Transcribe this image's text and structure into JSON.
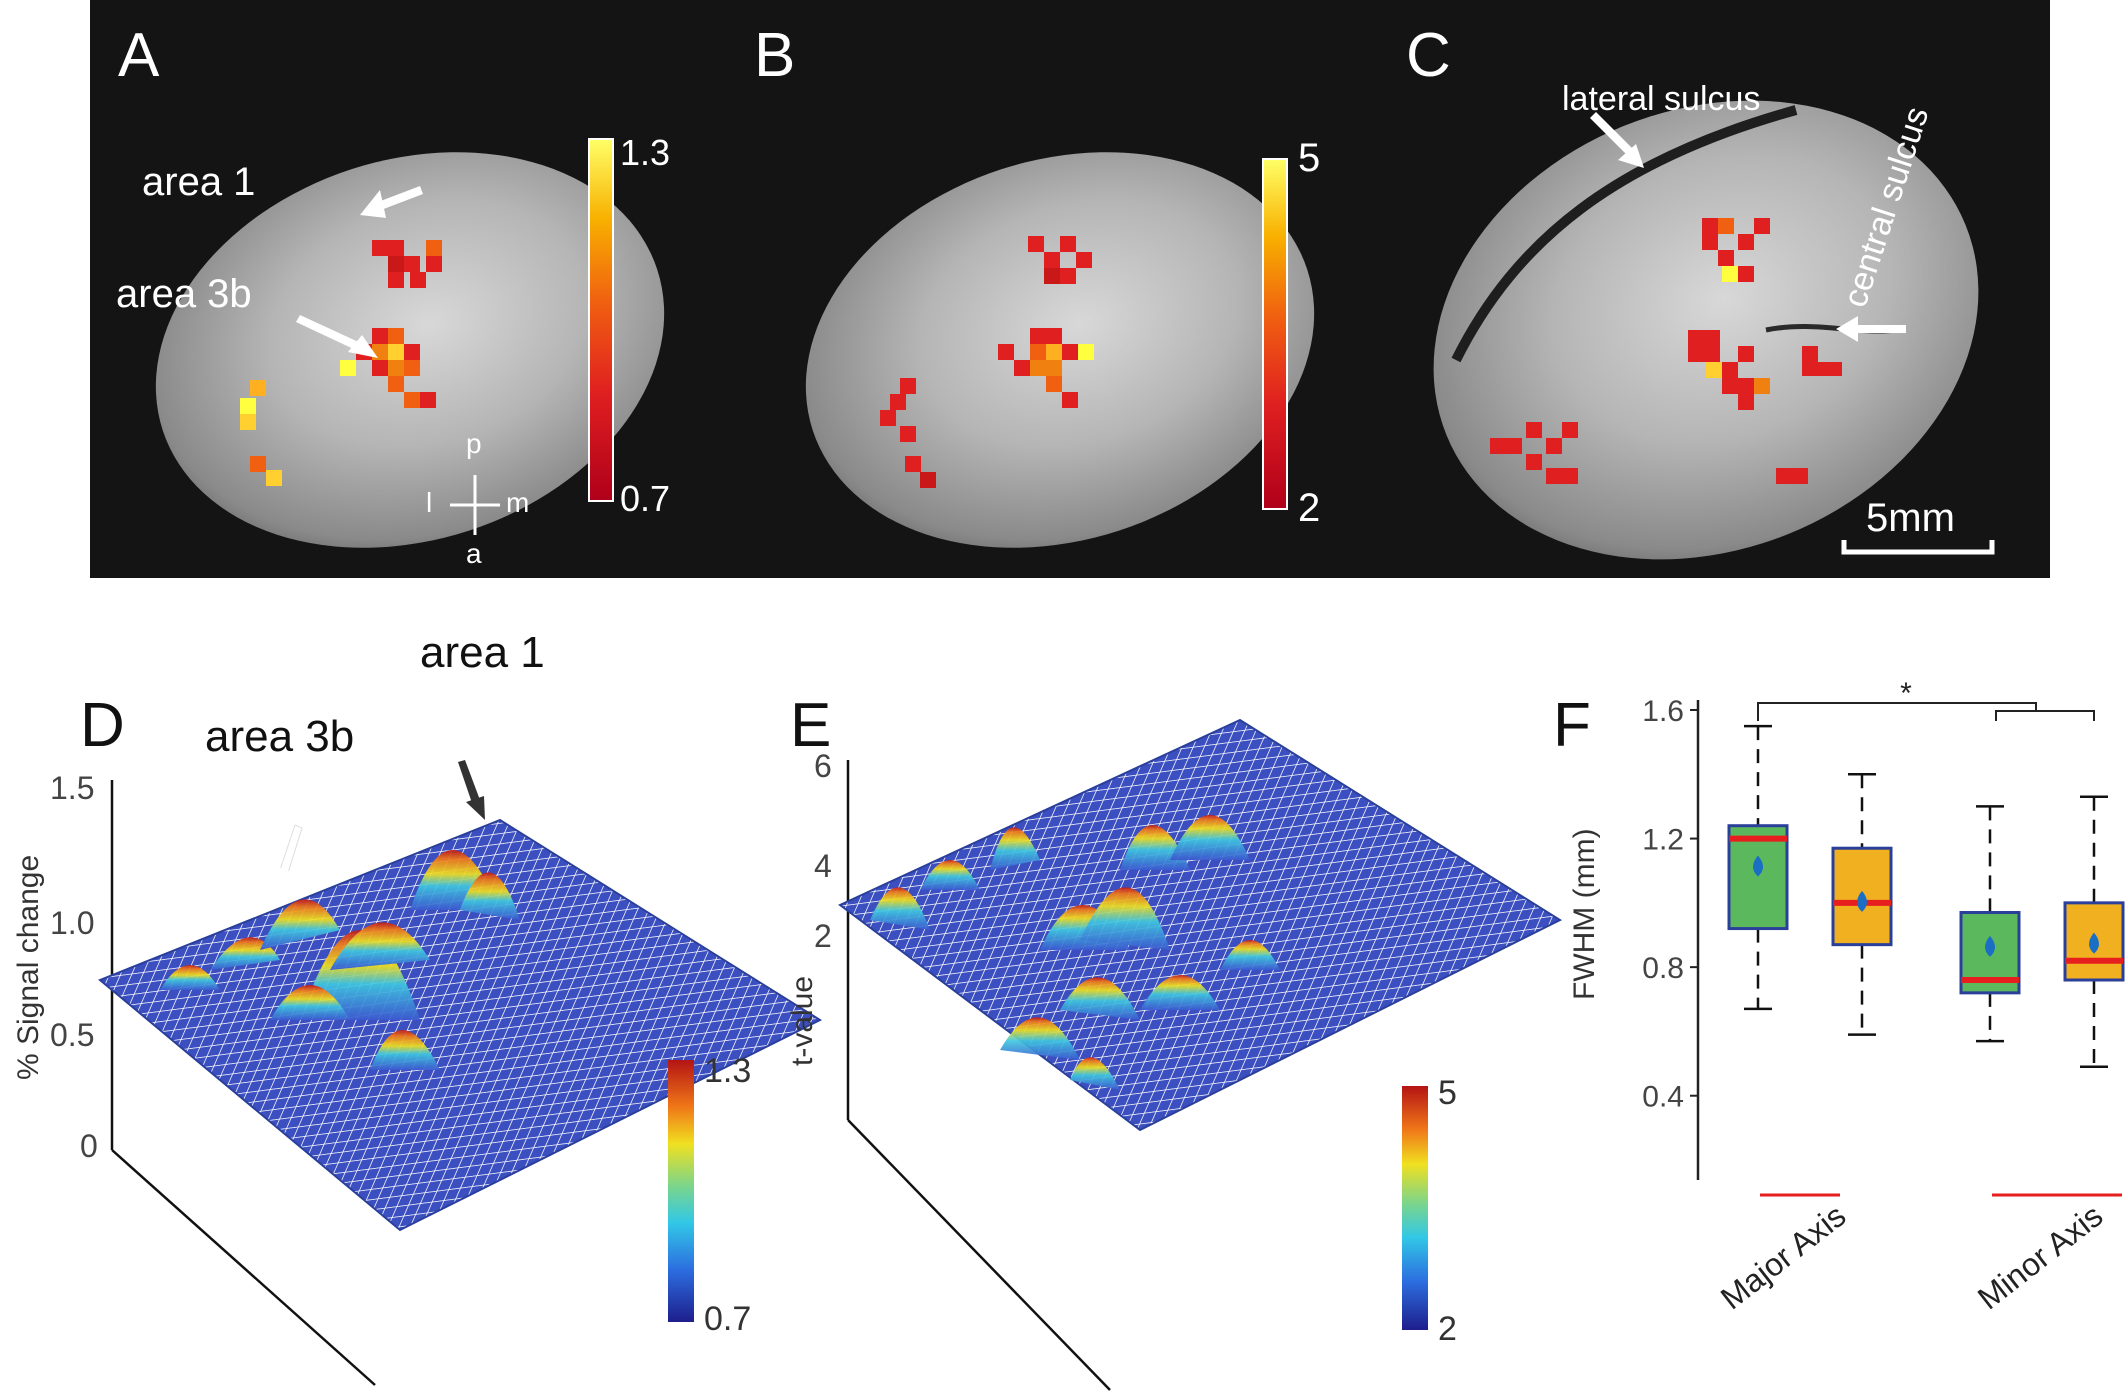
{
  "panels": {
    "A": {
      "letter": "A",
      "labels": {
        "area1": "area 1",
        "area3b": "area 3b"
      },
      "colorbar": {
        "max": "1.3",
        "min": "0.7"
      },
      "orientation": {
        "p": "p",
        "a": "a",
        "l": "l",
        "m": "m"
      }
    },
    "B": {
      "letter": "B",
      "colorbar": {
        "max": "5",
        "min": "2"
      }
    },
    "C": {
      "letter": "C",
      "labels": {
        "lateral": "lateral sulcus",
        "central": "central sulcus"
      },
      "scalebar": "5mm"
    },
    "D": {
      "letter": "D",
      "labels": {
        "area1": "area 1",
        "area3b": "area 3b"
      },
      "ylabel": "% Signal change",
      "yticks": [
        "0",
        "0.5",
        "1.0",
        "1.5"
      ],
      "colorbar": {
        "max": "1.3",
        "min": "0.7"
      }
    },
    "E": {
      "letter": "E",
      "ylabel": "t-value",
      "yticks": [
        "2",
        "4",
        "6"
      ],
      "colorbar": {
        "max": "5",
        "min": "2"
      }
    },
    "F": {
      "letter": "F",
      "significance": "*"
    }
  },
  "colors": {
    "box_green": "#5cb85c",
    "box_orange": "#f0b020",
    "median": "#e61e1e",
    "mean_marker": "#1a6fc4",
    "mesh_blue": "#2a3f9a"
  },
  "chart_data": {
    "type": "box",
    "ylabel": "FWHM (mm)",
    "ylim": [
      0.2,
      1.6
    ],
    "yticks": [
      0.4,
      0.8,
      1.2,
      1.6
    ],
    "groups": [
      "Major Axis",
      "Minor Axis"
    ],
    "boxes": [
      {
        "group": "Major Axis",
        "color": "green",
        "whisker_low": 0.67,
        "q1": 0.92,
        "median": 1.2,
        "q3": 1.24,
        "whisker_high": 1.55,
        "mean": 1.11
      },
      {
        "group": "Major Axis",
        "color": "orange",
        "whisker_low": 0.59,
        "q1": 0.87,
        "median": 1.0,
        "q3": 1.17,
        "whisker_high": 1.4,
        "mean": 1.0
      },
      {
        "group": "Minor Axis",
        "color": "green",
        "whisker_low": 0.57,
        "q1": 0.72,
        "median": 0.76,
        "q3": 0.97,
        "whisker_high": 1.3,
        "mean": 0.86
      },
      {
        "group": "Minor Axis",
        "color": "orange",
        "whisker_low": 0.49,
        "q1": 0.76,
        "median": 0.82,
        "q3": 1.0,
        "whisker_high": 1.33,
        "mean": 0.87
      }
    ]
  }
}
